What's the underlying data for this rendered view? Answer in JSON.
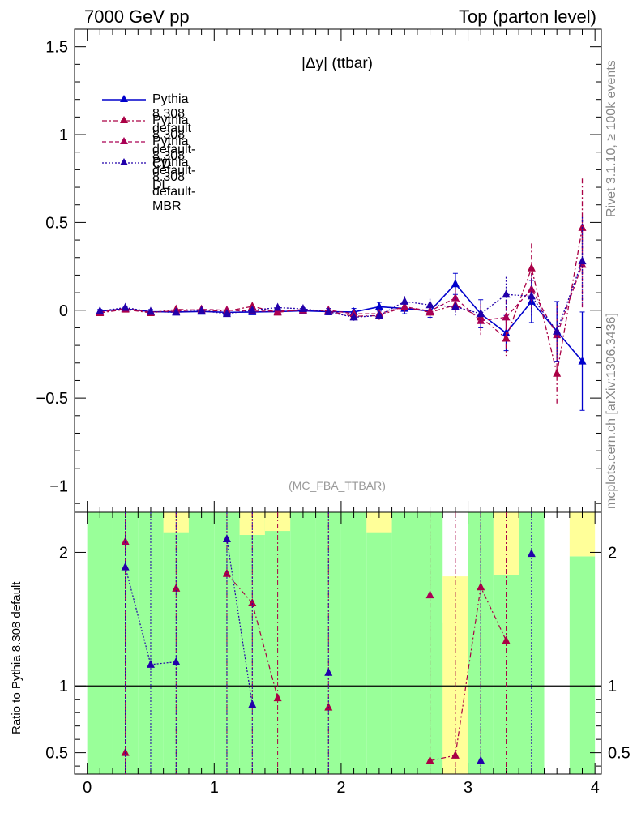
{
  "header": {
    "left": "7000 GeV pp",
    "right": "Top (parton level)"
  },
  "side_text": {
    "rivet": "Rivet 3.1.10, ≥ 100k events",
    "source": "mcplots.cern.ch [arXiv:1306.3436]"
  },
  "colors": {
    "default": "#0000cc",
    "cd": "#aa0044",
    "dl": "#aa0055",
    "mbr": "#2200aa",
    "band_green": "#99ff99",
    "band_yellow": "#ffff99"
  },
  "chart_data": [
    {
      "type": "line",
      "title": "|Δy| (ttbar)",
      "annotation": "(MC_FBA_TTBAR)",
      "xlim": [
        -0.1,
        4.05
      ],
      "ylim": [
        -1.15,
        1.6
      ],
      "yticks": [
        -1,
        -0.5,
        0,
        0.5,
        1,
        1.5
      ],
      "ytick_labels": [
        "−1",
        "−0.5",
        "0",
        "0.5",
        "1",
        "1.5"
      ],
      "x": [
        0.1,
        0.3,
        0.5,
        0.7,
        0.9,
        1.1,
        1.3,
        1.5,
        1.7,
        1.9,
        2.1,
        2.3,
        2.5,
        2.7,
        2.9,
        3.1,
        3.3,
        3.5,
        3.7,
        3.9
      ],
      "series": [
        {
          "name": "Pythia 8.308 default",
          "style": "solid",
          "values": [
            -0.005,
            0.008,
            -0.008,
            -0.01,
            -0.007,
            -0.012,
            -0.01,
            -0.008,
            -0.003,
            -0.008,
            -0.01,
            0.02,
            0.01,
            -0.005,
            0.15,
            -0.02,
            -0.13,
            0.05,
            -0.12,
            -0.29
          ],
          "errors": [
            0.01,
            0.01,
            0.012,
            0.012,
            0.012,
            0.013,
            0.014,
            0.015,
            0.016,
            0.018,
            0.02,
            0.025,
            0.03,
            0.035,
            0.06,
            0.08,
            0.1,
            0.12,
            0.17,
            0.28
          ]
        },
        {
          "name": "Pythia 8.308 default-CD",
          "style": "dashdot",
          "values": [
            -0.015,
            0.005,
            -0.015,
            0.005,
            0.0,
            -0.005,
            0.022,
            -0.012,
            0.005,
            -0.005,
            -0.035,
            -0.03,
            0.02,
            -0.012,
            0.03,
            -0.04,
            -0.16,
            0.24,
            -0.36,
            0.47
          ],
          "errors": [
            0.01,
            0.011,
            0.012,
            0.012,
            0.013,
            0.013,
            0.015,
            0.015,
            0.017,
            0.018,
            0.02,
            0.025,
            0.03,
            0.035,
            0.05,
            0.08,
            0.1,
            0.14,
            0.18,
            0.28
          ]
        },
        {
          "name": "Pythia 8.308 default-DL",
          "style": "dashed",
          "values": [
            -0.01,
            0.01,
            -0.01,
            -0.005,
            0.005,
            0.0,
            -0.005,
            -0.005,
            0.0,
            0.0,
            -0.02,
            -0.02,
            0.02,
            -0.005,
            0.07,
            -0.06,
            -0.04,
            0.12,
            -0.14,
            0.26
          ],
          "errors": [
            0.01,
            0.011,
            0.012,
            0.012,
            0.013,
            0.013,
            0.015,
            0.015,
            0.017,
            0.018,
            0.02,
            0.025,
            0.03,
            0.035,
            0.05,
            0.08,
            0.1,
            0.13,
            0.17,
            0.26
          ]
        },
        {
          "name": "Pythia 8.308 default-MBR",
          "style": "dotted",
          "values": [
            -0.005,
            0.015,
            -0.008,
            -0.012,
            -0.003,
            -0.02,
            0.0,
            0.015,
            0.008,
            -0.01,
            -0.04,
            -0.03,
            0.05,
            0.03,
            0.02,
            -0.02,
            0.09,
            0.08,
            -0.12,
            0.28
          ],
          "errors": [
            0.01,
            0.011,
            0.012,
            0.012,
            0.013,
            0.013,
            0.015,
            0.015,
            0.017,
            0.018,
            0.02,
            0.025,
            0.03,
            0.035,
            0.05,
            0.08,
            0.1,
            0.12,
            0.17,
            0.25
          ]
        }
      ]
    },
    {
      "type": "line",
      "ylabel": "Ratio to Pythia 8.308 default",
      "xlim": [
        -0.1,
        4.05
      ],
      "ylim": [
        0.34,
        2.3
      ],
      "yticks": [
        0.5,
        1,
        2
      ],
      "ytick_labels": [
        "0.5",
        "1",
        "2"
      ],
      "xticks": [
        0,
        1,
        2,
        3,
        4
      ],
      "xtick_labels": [
        "0",
        "1",
        "2",
        "3",
        "4"
      ],
      "reference_line": 1,
      "bands": {
        "x_edges": [
          0.0,
          0.2,
          0.4,
          0.6,
          0.8,
          1.0,
          1.2,
          1.4,
          1.6,
          1.8,
          2.0,
          2.2,
          2.4,
          2.6,
          2.8,
          3.0,
          3.2,
          3.4,
          3.6,
          3.8,
          4.0
        ],
        "green_low": [
          0.3,
          0.3,
          0.3,
          0.3,
          0.3,
          0.3,
          0.3,
          0.3,
          0.3,
          0.3,
          0.3,
          0.3,
          0.3,
          0.3,
          0.3,
          0.3,
          0.3,
          0.3,
          null,
          0.3
        ],
        "green_high": [
          2.3,
          2.3,
          2.3,
          2.3,
          2.3,
          2.3,
          2.3,
          2.3,
          2.3,
          2.3,
          2.3,
          2.3,
          2.3,
          2.3,
          1.47,
          2.3,
          2.3,
          2.3,
          null,
          1.97
        ],
        "yellow_low": [
          null,
          null,
          null,
          2.15,
          null,
          null,
          2.13,
          2.16,
          null,
          null,
          null,
          2.15,
          null,
          null,
          0.3,
          null,
          1.83,
          null,
          null,
          1.97
        ],
        "yellow_high": [
          null,
          null,
          null,
          2.3,
          null,
          null,
          2.3,
          2.3,
          null,
          null,
          null,
          2.3,
          null,
          null,
          1.82,
          null,
          2.3,
          null,
          null,
          2.3
        ]
      },
      "series": [
        {
          "name": "Pythia 8.308 default-CD",
          "values": [
            null,
            0.5,
            null,
            1.73,
            null,
            1.84,
            1.62,
            0.91,
            null,
            0.84,
            null,
            null,
            null,
            0.44,
            0.48,
            1.74,
            1.34,
            null,
            null,
            null
          ]
        },
        {
          "name": "Pythia 8.308 default-DL",
          "values": [
            null,
            2.08,
            null,
            null,
            null,
            null,
            null,
            null,
            null,
            null,
            null,
            null,
            null,
            1.68,
            null,
            null,
            null,
            null,
            null,
            null
          ]
        },
        {
          "name": "Pythia 8.308 default-MBR",
          "values": [
            null,
            1.89,
            1.16,
            1.18,
            null,
            2.1,
            0.86,
            null,
            null,
            1.1,
            null,
            null,
            null,
            null,
            null,
            0.44,
            null,
            1.99,
            null,
            null
          ]
        }
      ]
    }
  ]
}
